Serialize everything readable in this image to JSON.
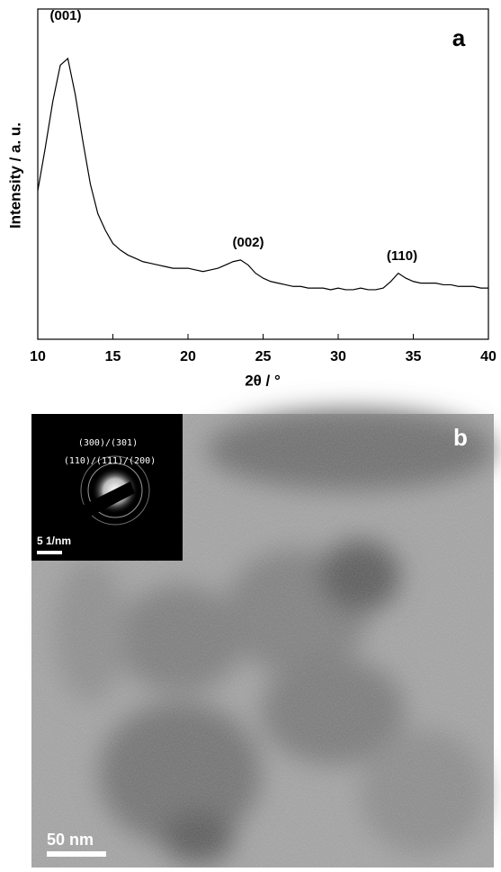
{
  "chart_data": {
    "type": "line",
    "x_label": "2θ / °",
    "y_label": "Intensity / a. u.",
    "panel_label": "a",
    "annotations": [
      "(001)",
      "(002)",
      "(110)"
    ],
    "x": [
      10,
      10.5,
      11,
      11.5,
      12,
      12.5,
      13,
      13.5,
      14,
      14.5,
      15,
      15.5,
      16,
      16.5,
      17,
      17.5,
      18,
      18.5,
      19,
      19.5,
      20,
      20.5,
      21,
      21.5,
      22,
      22.5,
      23,
      23.5,
      24,
      24.5,
      25,
      25.5,
      26,
      26.5,
      27,
      27.5,
      28,
      28.5,
      29,
      29.5,
      30,
      30.5,
      31,
      31.5,
      32,
      32.5,
      33,
      33.5,
      34,
      34.5,
      35,
      35.5,
      36,
      36.5,
      37,
      37.5,
      38,
      38.5,
      39,
      39.5,
      40
    ],
    "values": [
      45,
      58,
      72,
      83,
      85,
      74,
      60,
      47,
      38,
      33,
      29,
      27,
      25.5,
      24.5,
      23.5,
      23,
      22.5,
      22,
      21.5,
      21.5,
      21.5,
      21,
      20.5,
      21,
      21.5,
      22.5,
      23.5,
      24,
      22.5,
      20,
      18.5,
      17.5,
      17,
      16.5,
      16,
      16,
      15.5,
      15.5,
      15.5,
      15,
      15.5,
      15,
      15,
      15.5,
      15,
      15,
      15.5,
      17.5,
      20,
      18.5,
      17.5,
      17,
      17,
      17,
      16.5,
      16.5,
      16,
      16,
      16,
      15.5,
      15.5
    ],
    "color": "#000000",
    "xlim": [
      10,
      40
    ],
    "xticks": [
      10,
      15,
      20,
      25,
      30,
      35,
      40
    ],
    "ylim": [
      0,
      100
    ]
  },
  "panel_b": {
    "label": "b",
    "inset_rings": [
      "(300)/(301)",
      "(110)/(111)/(200)"
    ],
    "inset_scale": "5 1/nm",
    "scale_bar": "50 nm"
  }
}
